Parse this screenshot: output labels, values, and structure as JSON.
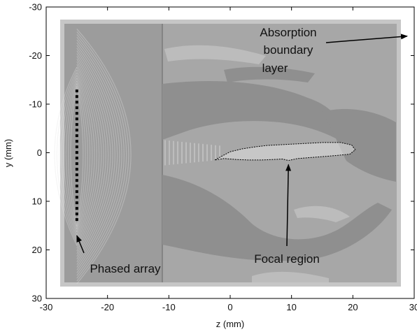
{
  "chart_data": {
    "type": "heatmap",
    "xlabel": "z (mm)",
    "ylabel": "y (mm)",
    "xlim": [
      -30,
      30
    ],
    "ylim": [
      -30,
      30
    ],
    "y_reversed": true,
    "xticks": [
      -30,
      -20,
      -10,
      0,
      10,
      20,
      30
    ],
    "yticks": [
      -30,
      -20,
      -10,
      0,
      10,
      20,
      30
    ],
    "colors": {
      "field_gray": "#a7a7a7",
      "array_region_gray": "#9c9c9c",
      "boundary_layer_gray": "#c6c6c6",
      "dark_patch_gray": "#8d8d8d",
      "ink": "#000000"
    },
    "annotations": [
      {
        "id": "absorption",
        "lines": [
          "Absorption",
          "boundary",
          "layer"
        ],
        "arrow_to": [
          30,
          -24
        ]
      },
      {
        "id": "focal",
        "lines": [
          "Focal region"
        ],
        "arrow_to": [
          9.5,
          2
        ]
      },
      {
        "id": "array",
        "lines": [
          "Phased array"
        ],
        "arrow_to": [
          -25,
          16.5
        ]
      }
    ],
    "phased_array": {
      "z": -25,
      "y_from": -13,
      "y_to": 14.5
    },
    "focal_region_outline": [
      [
        -2.5,
        1.5
      ],
      [
        -1.5,
        0.8
      ],
      [
        0,
        -0.2
      ],
      [
        2,
        -0.8
      ],
      [
        4,
        -1.2
      ],
      [
        6,
        -1.5
      ],
      [
        9,
        -1.7
      ],
      [
        12,
        -1.9
      ],
      [
        15,
        -2.1
      ],
      [
        18,
        -2.1
      ],
      [
        19.8,
        -1.6
      ],
      [
        20.4,
        -0.6
      ],
      [
        19.5,
        0.3
      ],
      [
        17,
        0.6
      ],
      [
        14,
        0.9
      ],
      [
        11,
        1.2
      ],
      [
        9.5,
        1.6
      ],
      [
        8.5,
        1.3
      ],
      [
        7,
        1.4
      ],
      [
        5,
        1.5
      ],
      [
        3,
        1.5
      ],
      [
        1,
        1.4
      ],
      [
        -1,
        1.2
      ],
      [
        -2.5,
        1.5
      ]
    ]
  }
}
